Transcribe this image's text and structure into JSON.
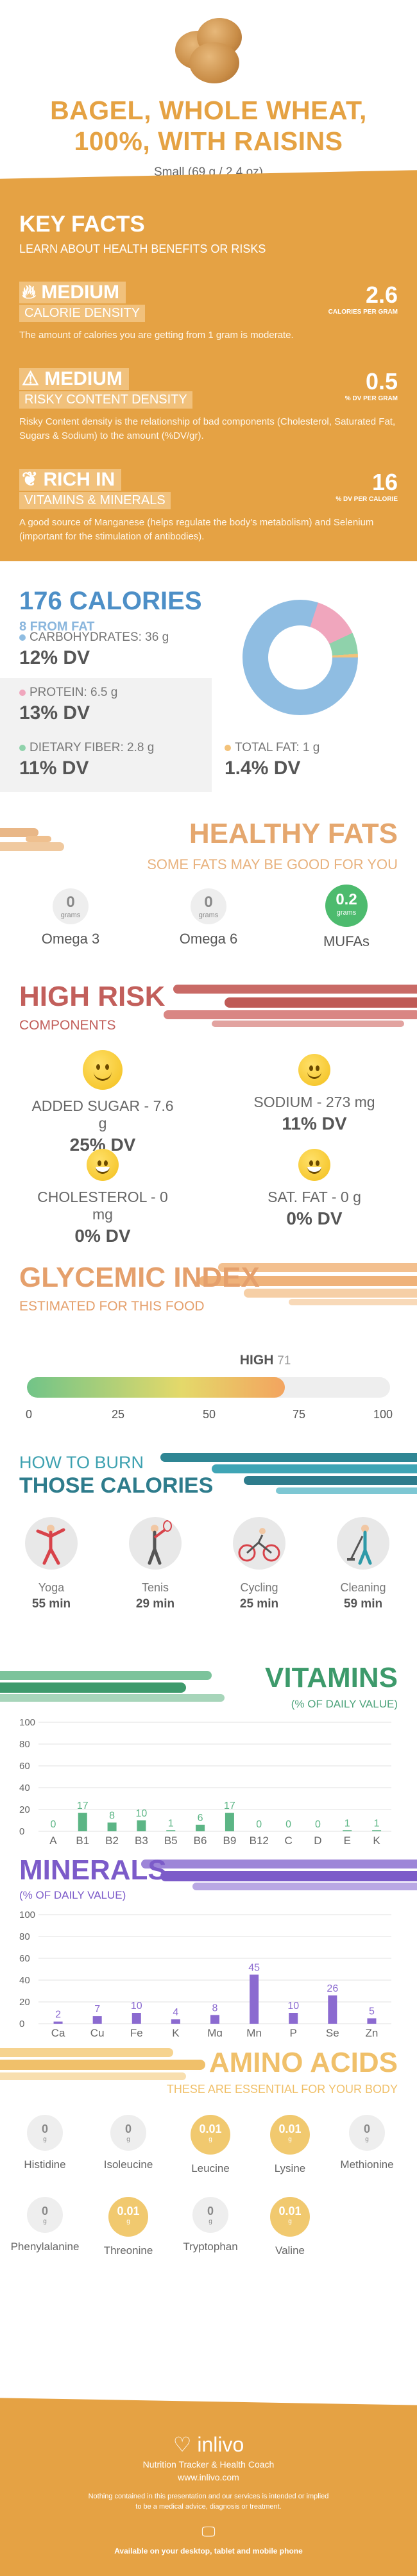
{
  "header": {
    "title": "BAGEL, WHOLE WHEAT, 100%, WITH RAISINS",
    "serving": "Small (69 g / 2.4 oz)"
  },
  "key_facts": {
    "title": "KEY FACTS",
    "subtitle": "LEARN ABOUT HEALTH BENEFITS OR RISKS",
    "facts": [
      {
        "level": "MEDIUM",
        "category": "CALORIE DENSITY",
        "value": "2.6",
        "unit": "CALORIES PER GRAM",
        "description": "The amount of calories you are getting from 1 gram is moderate.",
        "icon": "flame-icon"
      },
      {
        "level": "MEDIUM",
        "category": "RISKY CONTENT DENSITY",
        "value": "0.5",
        "unit": "% DV PER GRAM",
        "description": "Risky Content density is the relationship of bad components (Cholesterol, Saturated Fat, Sugars & Sodium) to the amount (%DV/gr).",
        "icon": "warning-icon"
      },
      {
        "level": "RICH IN",
        "category": "VITAMINS & MINERALS",
        "value": "16",
        "unit": "% DV PER CALORIE",
        "description": "A good source of Manganese (helps regulate the body's metabolism) and Selenium (important for the stimulation of antibodies).",
        "icon": "leaf-icon"
      }
    ]
  },
  "calories": {
    "title": "176 CALORIES",
    "from_fat": "8 FROM FAT",
    "nutrients": [
      {
        "label": "CARBOHYDRATES: 36 g",
        "dv": "12% DV",
        "color": "#8fbde2"
      },
      {
        "label": "PROTEIN: 6.5 g",
        "dv": "13% DV",
        "color": "#f0a6bd"
      },
      {
        "label": "DIETARY FIBER: 2.8 g",
        "dv": "11% DV",
        "color": "#8fd2ab"
      },
      {
        "label": "TOTAL FAT: 1 g",
        "dv": "1.4% DV",
        "color": "#f3c27a"
      }
    ],
    "donut": [
      {
        "name": "carbohydrates",
        "value": 80,
        "color": "#8fbde2"
      },
      {
        "name": "protein",
        "value": 13,
        "color": "#f0a6bd"
      },
      {
        "name": "fiber",
        "value": 6,
        "color": "#8fd2ab"
      },
      {
        "name": "fat",
        "value": 1,
        "color": "#f3c27a"
      }
    ]
  },
  "healthy_fats": {
    "title": "HEALTHY FATS",
    "subtitle": "SOME FATS MAY BE GOOD FOR YOU",
    "items": [
      {
        "name": "Omega 3",
        "value": "0",
        "unit": "grams"
      },
      {
        "name": "Omega 6",
        "value": "0",
        "unit": "grams"
      },
      {
        "name": "MUFAs",
        "value": "0.2",
        "unit": "grams"
      }
    ]
  },
  "high_risk": {
    "title": "HIGH RISK",
    "subtitle": "COMPONENTS",
    "items": [
      {
        "label": "ADDED SUGAR - 7.6 g",
        "dv": "25% DV"
      },
      {
        "label": "SODIUM - 273 mg",
        "dv": "11% DV"
      },
      {
        "label": "CHOLESTEROL - 0 mg",
        "dv": "0% DV"
      },
      {
        "label": "SAT. FAT - 0 g",
        "dv": "0% DV"
      }
    ]
  },
  "glycemic": {
    "title": "GLYCEMIC INDEX",
    "subtitle": "ESTIMATED FOR THIS FOOD",
    "level": "HIGH",
    "value": 71,
    "ticks": [
      "0",
      "25",
      "50",
      "75",
      "100"
    ]
  },
  "burn": {
    "title1": "HOW TO BURN",
    "title2": "THOSE CALORIES",
    "activities": [
      {
        "name": "Yoga",
        "minutes": "55 min",
        "icon": "yoga-icon"
      },
      {
        "name": "Tenis",
        "minutes": "29 min",
        "icon": "tennis-icon"
      },
      {
        "name": "Cycling",
        "minutes": "25 min",
        "icon": "cycling-icon"
      },
      {
        "name": "Cleaning",
        "minutes": "59 min",
        "icon": "cleaning-icon"
      }
    ]
  },
  "vitamins": {
    "title": "VITAMINS",
    "subtitle": "(% OF DAILY VALUE)"
  },
  "minerals": {
    "title": "MINERALS",
    "subtitle": "(% OF DAILY VALUE)"
  },
  "chart_data": [
    {
      "type": "bar",
      "title": "VITAMINS",
      "ylabel": "(% OF DAILY VALUE)",
      "categories": [
        "A",
        "B1",
        "B2",
        "B3",
        "B5",
        "B6",
        "B9",
        "B12",
        "C",
        "D",
        "E",
        "K"
      ],
      "values": [
        0,
        17,
        8,
        10,
        1,
        6,
        17,
        0,
        0,
        0,
        1,
        1
      ],
      "ylim": [
        0,
        100
      ],
      "yticks": [
        0,
        20,
        40,
        60,
        80,
        100
      ],
      "color": "#5cb585"
    },
    {
      "type": "bar",
      "title": "MINERALS",
      "ylabel": "(% OF DAILY VALUE)",
      "categories": [
        "Ca",
        "Cu",
        "Fe",
        "K",
        "Mg",
        "Mn",
        "P",
        "Se",
        "Zn"
      ],
      "values": [
        2,
        7,
        10,
        4,
        8,
        45,
        10,
        26,
        5
      ],
      "ylim": [
        0,
        100
      ],
      "yticks": [
        0,
        20,
        40,
        60,
        80,
        100
      ],
      "color": "#8b6ad0"
    }
  ],
  "amino": {
    "title": "AMINO ACIDS",
    "subtitle": "THESE ARE ESSENTIAL FOR YOUR BODY",
    "items": [
      {
        "name": "Histidine",
        "value": "0",
        "unit": "g",
        "highlight": false
      },
      {
        "name": "Isoleucine",
        "value": "0",
        "unit": "g",
        "highlight": false
      },
      {
        "name": "Leucine",
        "value": "0.01",
        "unit": "g",
        "highlight": true
      },
      {
        "name": "Lysine",
        "value": "0.01",
        "unit": "g",
        "highlight": true
      },
      {
        "name": "Methionine",
        "value": "0",
        "unit": "g",
        "highlight": false
      },
      {
        "name": "Phenylalanine",
        "value": "0",
        "unit": "g",
        "highlight": false
      },
      {
        "name": "Threonine",
        "value": "0.01",
        "unit": "g",
        "highlight": true
      },
      {
        "name": "Tryptophan",
        "value": "0",
        "unit": "g",
        "highlight": false
      },
      {
        "name": "Valine",
        "value": "0.01",
        "unit": "g",
        "highlight": true
      }
    ]
  },
  "footer": {
    "brand": "inlivo",
    "tagline": "Nutrition Tracker & Health Coach",
    "url": "www.inlivo.com",
    "disclaimer1": "Nothing contained in this presentation and our services is intended or implied",
    "disclaimer2": "to be a medical advice, diagnosis or treatment.",
    "available": "Available on your desktop, tablet and mobile phone"
  }
}
